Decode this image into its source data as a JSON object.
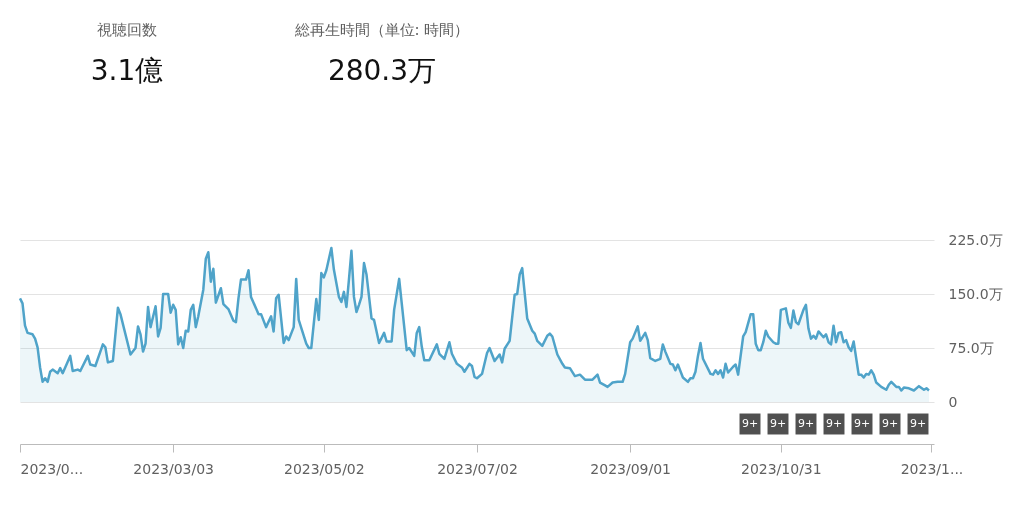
{
  "chart_data": [
    {
      "type": "other",
      "annotations": [
        "視聴回数",
        "3.1億",
        "総再生時間（単位: 時間）",
        "280.3万"
      ]
    },
    {
      "type": "area",
      "xlim": [
        "2023-01-01",
        "2023-12-31"
      ],
      "xticks": [
        {
          "value": "2023-01-01",
          "label": "2023/0..."
        },
        {
          "value": "2023-03-03",
          "label": "2023/03/03"
        },
        {
          "value": "2023-05-02",
          "label": "2023/05/02"
        },
        {
          "value": "2023-07-02",
          "label": "2023/07/02"
        },
        {
          "value": "2023-09-01",
          "label": "2023/09/01"
        },
        {
          "value": "2023-10-31",
          "label": "2023/10/31"
        },
        {
          "value": "2023-12-30",
          "label": "2023/1..."
        }
      ],
      "ylim": [
        0,
        225
      ],
      "yticks": [
        0,
        {
          "value": 75,
          "label": "75.0万"
        },
        {
          "value": 150,
          "label": "150.0万"
        },
        {
          "value": 225,
          "label": "225.0万"
        }
      ],
      "grid": "y",
      "annotations": [
        "9+",
        "9+",
        "9+",
        "9+",
        "9+",
        "9+",
        "9+"
      ],
      "series": [
        {
          "color": "#4fa3c9",
          "x": [
            "2023-01-01",
            "2023-01-02",
            "2023-01-03",
            "2023-01-04",
            "2023-01-06",
            "2023-01-07",
            "2023-01-08",
            "2023-01-09",
            "2023-01-10",
            "2023-01-11",
            "2023-01-12",
            "2023-01-13",
            "2023-01-14",
            "2023-01-16",
            "2023-01-17",
            "2023-01-18",
            "2023-01-20",
            "2023-01-21",
            "2023-01-22",
            "2023-01-24",
            "2023-01-25",
            "2023-01-28",
            "2023-01-29",
            "2023-01-31",
            "2023-02-03",
            "2023-02-04",
            "2023-02-05",
            "2023-02-07",
            "2023-02-09",
            "2023-02-10",
            "2023-02-14",
            "2023-02-16",
            "2023-02-17",
            "2023-02-18",
            "2023-02-19",
            "2023-02-20",
            "2023-02-21",
            "2023-02-22",
            "2023-02-24",
            "2023-02-25",
            "2023-02-26",
            "2023-02-27",
            "2023-03-01",
            "2023-03-02",
            "2023-03-03",
            "2023-03-04",
            "2023-03-05",
            "2023-03-06",
            "2023-03-07",
            "2023-03-08",
            "2023-03-09",
            "2023-03-10",
            "2023-03-11",
            "2023-03-12",
            "2023-03-13",
            "2023-03-15",
            "2023-03-16",
            "2023-03-17",
            "2023-03-18",
            "2023-03-19",
            "2023-03-20",
            "2023-03-22",
            "2023-03-23",
            "2023-03-25",
            "2023-03-27",
            "2023-03-28",
            "2023-03-29",
            "2023-03-30",
            "2023-04-01",
            "2023-04-02",
            "2023-04-03",
            "2023-04-06",
            "2023-04-07",
            "2023-04-09",
            "2023-04-11",
            "2023-04-12",
            "2023-04-13",
            "2023-04-14",
            "2023-04-16",
            "2023-04-17",
            "2023-04-18",
            "2023-04-20",
            "2023-04-21",
            "2023-04-22",
            "2023-04-25",
            "2023-04-26",
            "2023-04-27",
            "2023-04-29",
            "2023-04-30",
            "2023-05-01",
            "2023-05-02",
            "2023-05-03",
            "2023-05-05",
            "2023-05-06",
            "2023-05-08",
            "2023-05-09",
            "2023-05-10",
            "2023-05-11",
            "2023-05-12",
            "2023-05-13",
            "2023-05-14",
            "2023-05-15",
            "2023-05-16",
            "2023-05-17",
            "2023-05-18",
            "2023-05-19",
            "2023-05-21",
            "2023-05-22",
            "2023-05-24",
            "2023-05-26",
            "2023-05-27",
            "2023-05-29",
            "2023-05-30",
            "2023-06-01",
            "2023-06-02",
            "2023-06-04",
            "2023-06-05",
            "2023-06-07",
            "2023-06-08",
            "2023-06-09",
            "2023-06-10",
            "2023-06-11",
            "2023-06-13",
            "2023-06-16",
            "2023-06-17",
            "2023-06-19",
            "2023-06-21",
            "2023-06-22",
            "2023-06-24",
            "2023-06-26",
            "2023-06-27",
            "2023-06-29",
            "2023-06-30",
            "2023-07-01",
            "2023-07-02",
            "2023-07-04",
            "2023-07-06",
            "2023-07-07",
            "2023-07-09",
            "2023-07-11",
            "2023-07-12",
            "2023-07-13",
            "2023-07-15",
            "2023-07-17",
            "2023-07-18",
            "2023-07-19",
            "2023-07-20",
            "2023-07-21",
            "2023-07-22",
            "2023-07-24",
            "2023-07-25",
            "2023-07-26",
            "2023-07-28",
            "2023-07-30",
            "2023-07-31",
            "2023-08-01",
            "2023-08-03",
            "2023-08-05",
            "2023-08-06",
            "2023-08-08",
            "2023-08-10",
            "2023-08-12",
            "2023-08-14",
            "2023-08-17",
            "2023-08-19",
            "2023-08-20",
            "2023-08-22",
            "2023-08-23",
            "2023-08-25",
            "2023-08-27",
            "2023-08-29",
            "2023-08-30",
            "2023-09-01",
            "2023-09-02",
            "2023-09-04",
            "2023-09-05",
            "2023-09-07",
            "2023-09-08",
            "2023-09-09",
            "2023-09-11",
            "2023-09-13",
            "2023-09-14",
            "2023-09-15",
            "2023-09-17",
            "2023-09-18",
            "2023-09-19",
            "2023-09-20",
            "2023-09-22",
            "2023-09-24",
            "2023-09-25",
            "2023-09-26",
            "2023-09-27",
            "2023-09-28",
            "2023-09-29",
            "2023-09-30",
            "2023-10-03",
            "2023-10-04",
            "2023-10-05",
            "2023-10-06",
            "2023-10-07",
            "2023-10-08",
            "2023-10-09",
            "2023-10-10",
            "2023-10-12",
            "2023-10-13",
            "2023-10-14",
            "2023-10-16",
            "2023-10-17",
            "2023-10-19",
            "2023-10-20",
            "2023-10-21",
            "2023-10-22",
            "2023-10-23",
            "2023-10-24",
            "2023-10-25",
            "2023-10-26",
            "2023-10-28",
            "2023-10-29",
            "2023-10-30",
            "2023-10-31",
            "2023-11-02",
            "2023-11-03",
            "2023-11-04",
            "2023-11-05",
            "2023-11-06",
            "2023-11-07",
            "2023-11-09",
            "2023-11-10",
            "2023-11-11",
            "2023-11-12",
            "2023-11-13",
            "2023-11-14",
            "2023-11-15",
            "2023-11-17",
            "2023-11-18",
            "2023-11-19",
            "2023-11-20",
            "2023-11-21",
            "2023-11-22",
            "2023-11-23",
            "2023-11-24",
            "2023-11-25",
            "2023-11-26",
            "2023-11-27",
            "2023-11-28",
            "2023-11-29",
            "2023-12-01",
            "2023-12-02",
            "2023-12-03",
            "2023-12-04",
            "2023-12-05",
            "2023-12-06",
            "2023-12-07",
            "2023-12-08",
            "2023-12-10",
            "2023-12-12",
            "2023-12-13",
            "2023-12-14",
            "2023-12-16",
            "2023-12-17",
            "2023-12-18",
            "2023-12-19",
            "2023-12-21",
            "2023-12-23",
            "2023-12-25",
            "2023-12-27",
            "2023-12-28",
            "2023-12-29"
          ],
          "values": [
            144,
            137,
            106,
            96,
            94,
            88,
            76,
            48,
            28,
            33,
            28,
            42,
            45,
            40,
            47,
            40,
            56,
            64,
            43,
            45,
            43,
            64,
            52,
            50,
            80,
            76,
            55,
            57,
            131,
            122,
            66,
            75,
            105,
            94,
            70,
            81,
            132,
            104,
            133,
            91,
            103,
            150,
            150,
            124,
            135,
            128,
            80,
            90,
            75,
            99,
            98,
            128,
            135,
            104,
            119,
            156,
            199,
            208,
            167,
            185,
            138,
            158,
            136,
            129,
            113,
            111,
            144,
            170,
            170,
            183,
            146,
            122,
            122,
            104,
            119,
            98,
            144,
            149,
            82,
            91,
            86,
            104,
            171,
            114,
            81,
            75,
            75,
            143,
            114,
            179,
            173,
            183,
            214,
            184,
            146,
            139,
            153,
            132,
            170,
            210,
            146,
            125,
            135,
            146,
            193,
            177,
            116,
            114,
            82,
            96,
            84,
            84,
            128,
            171,
            138,
            72,
            75,
            64,
            96,
            104,
            77,
            58,
            58,
            80,
            67,
            60,
            83,
            67,
            53,
            48,
            42,
            53,
            50,
            35,
            33,
            39,
            68,
            75,
            57,
            66,
            55,
            74,
            85,
            149,
            150,
            177,
            186,
            151,
            116,
            99,
            95,
            85,
            78,
            92,
            95,
            91,
            66,
            53,
            48,
            47,
            36,
            38,
            31,
            31,
            38,
            27,
            23,
            21,
            27,
            28,
            28,
            39,
            83,
            88,
            105,
            85,
            96,
            86,
            61,
            57,
            60,
            80,
            70,
            53,
            52,
            44,
            52,
            34,
            28,
            33,
            33,
            42,
            64,
            82,
            60,
            39,
            38,
            44,
            39,
            44,
            34,
            53,
            41,
            49,
            52,
            38,
            91,
            97,
            122,
            122,
            81,
            72,
            72,
            83,
            99,
            91,
            83,
            81,
            81,
            128,
            130,
            110,
            103,
            127,
            111,
            108,
            128,
            135,
            102,
            88,
            92,
            88,
            98,
            90,
            94,
            83,
            80,
            106,
            83,
            96,
            97,
            83,
            86,
            76,
            71,
            84,
            38,
            38,
            34,
            39,
            38,
            44,
            38,
            27,
            21,
            17,
            24,
            28,
            21,
            21,
            16,
            20,
            19,
            16,
            22,
            17,
            19,
            16
          ]
        }
      ]
    }
  ]
}
